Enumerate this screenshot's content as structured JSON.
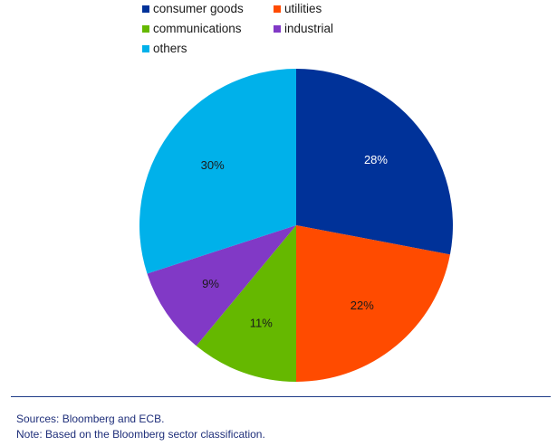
{
  "chart_data": {
    "type": "pie",
    "slices": [
      {
        "label": "consumer goods",
        "value": 28,
        "display": "28%",
        "color": "#003299"
      },
      {
        "label": "utilities",
        "value": 22,
        "display": "22%",
        "color": "#ff4b00"
      },
      {
        "label": "communications",
        "value": 11,
        "display": "11%",
        "color": "#65b800"
      },
      {
        "label": "industrial",
        "value": 9,
        "display": "9%",
        "color": "#8139c6"
      },
      {
        "label": "others",
        "value": 30,
        "display": "30%",
        "color": "#00b1ea"
      }
    ],
    "legend_placement": "top"
  },
  "notes": {
    "sources": "Sources: Bloomberg and ECB.",
    "note": "Note: Based on the Bloomberg sector classification."
  }
}
